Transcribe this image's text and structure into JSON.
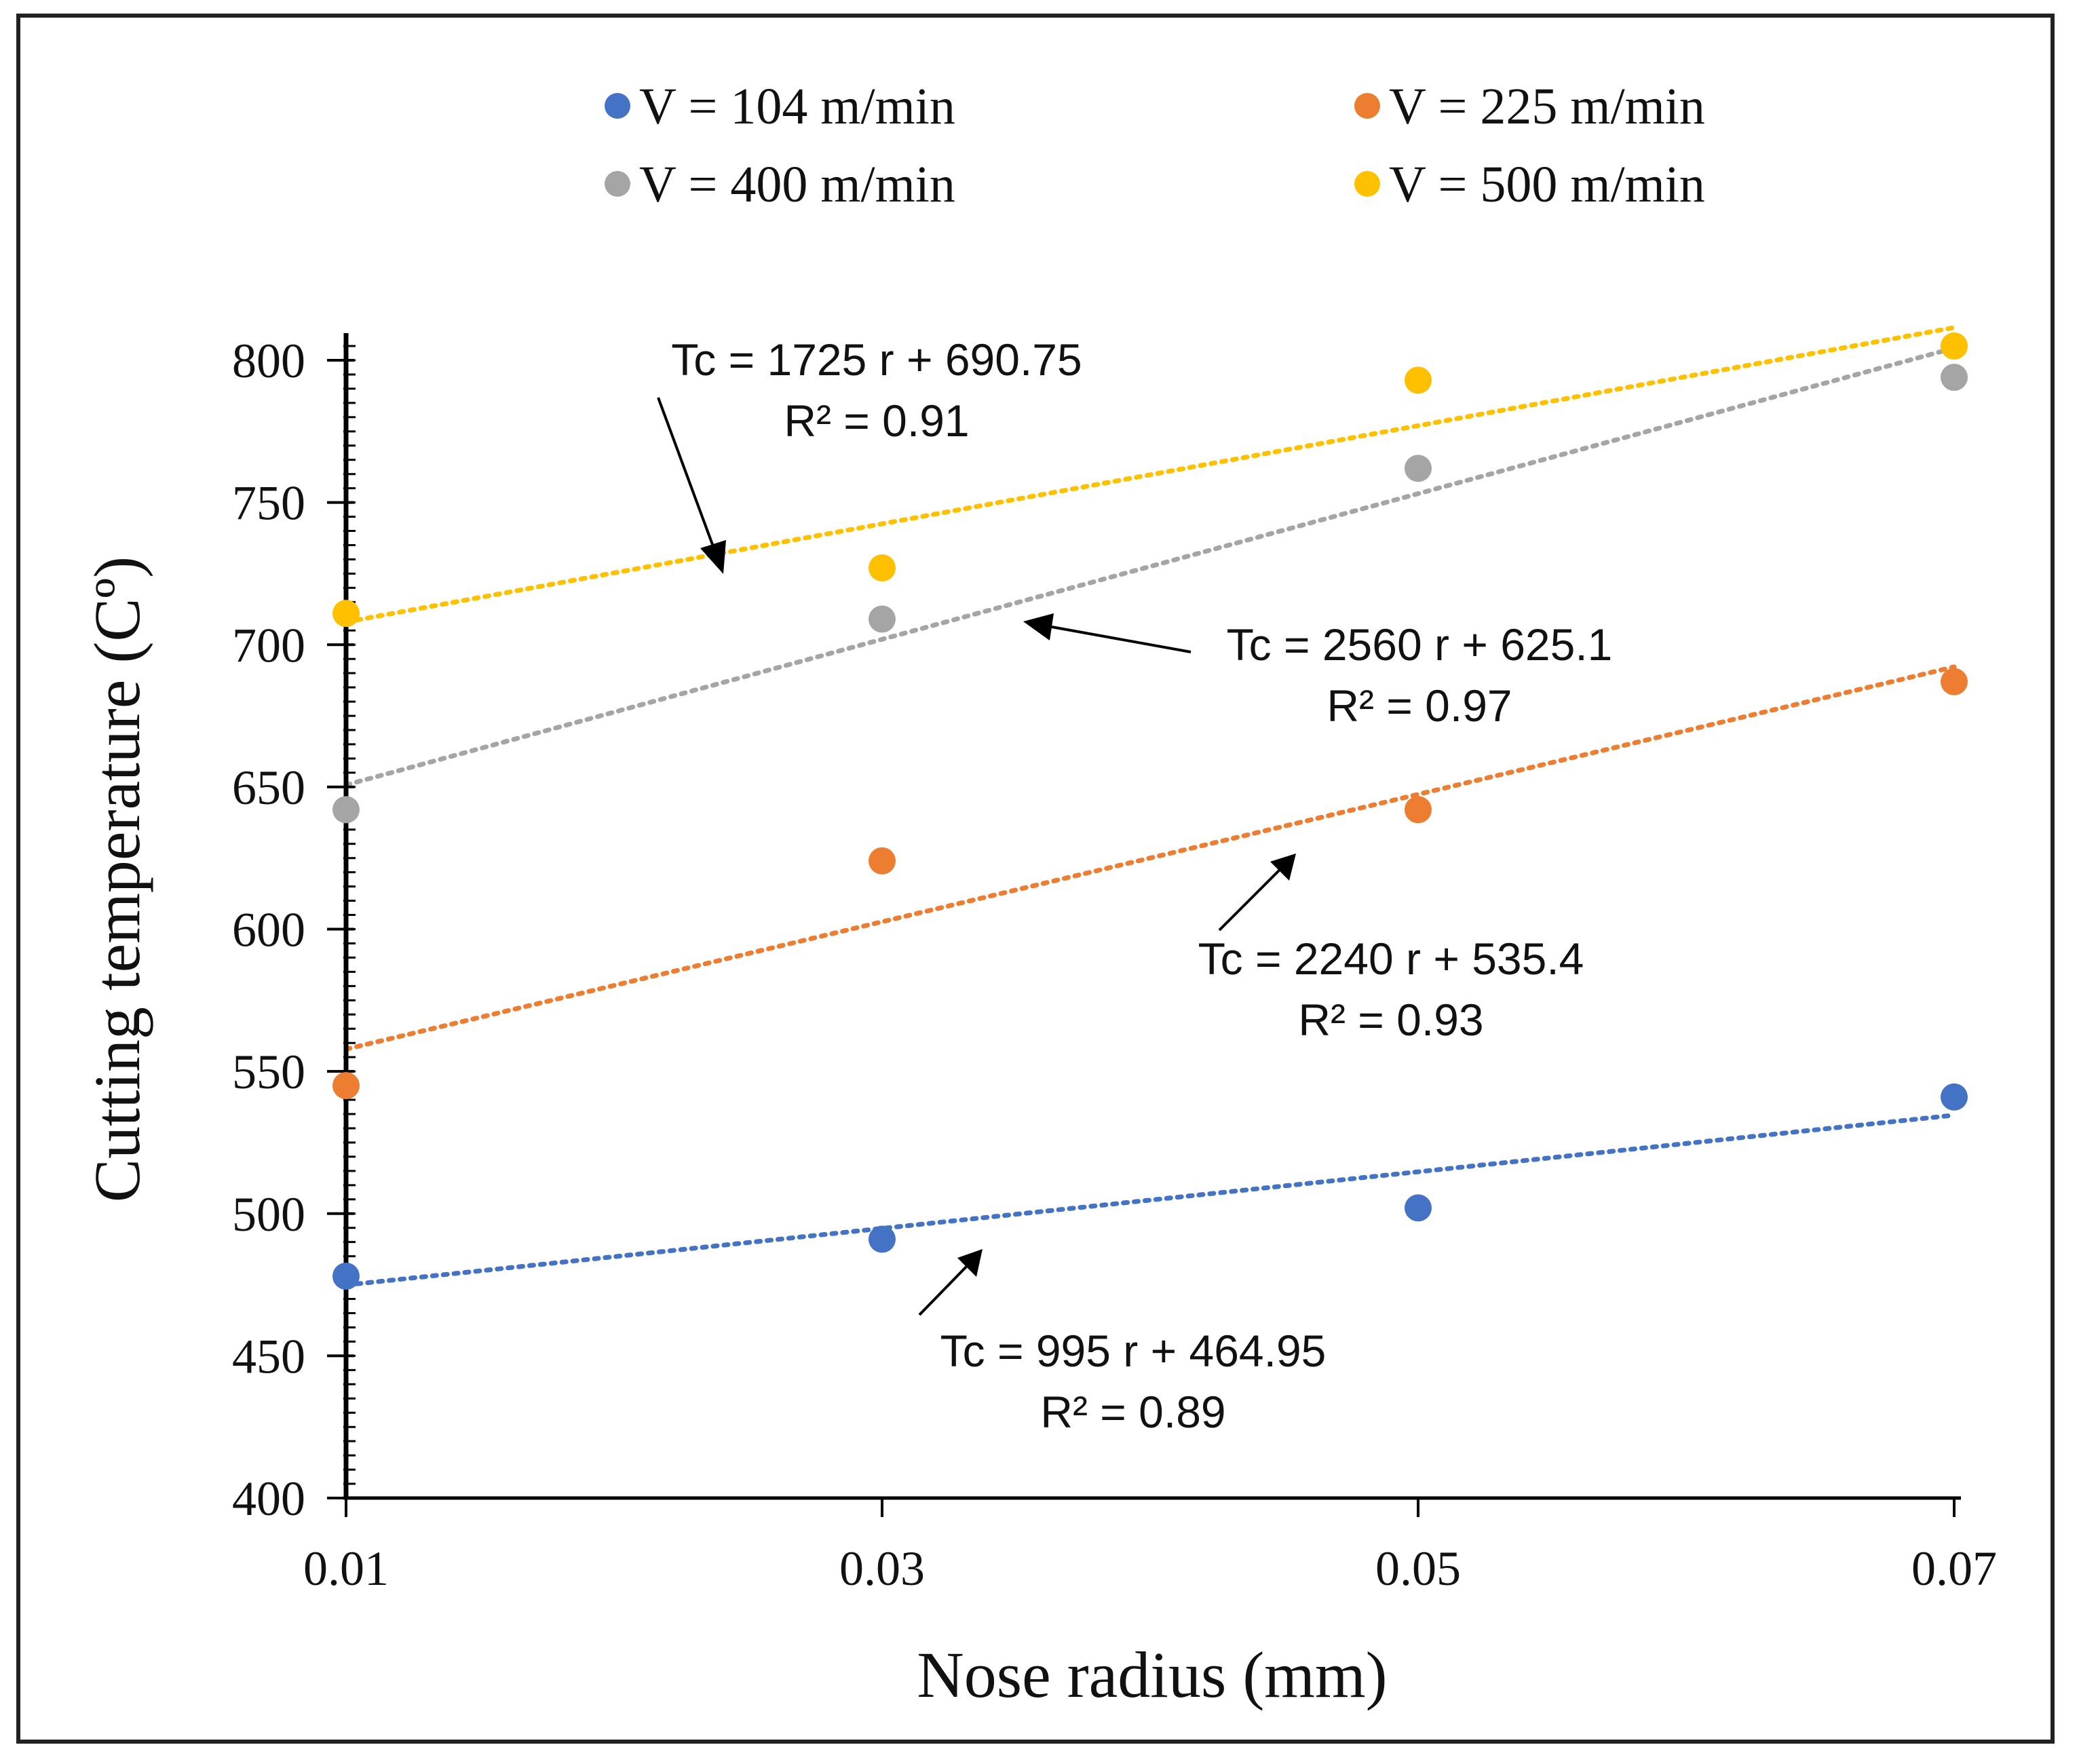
{
  "chart_data": {
    "type": "scatter",
    "xlabel": "Nose radius (mm)",
    "ylabel": "Cutting temperature (Cº)",
    "x": [
      0.01,
      0.03,
      0.05,
      0.07
    ],
    "x_tick_labels": [
      "0.01",
      "0.03",
      "0.05",
      "0.07"
    ],
    "xlim": [
      0.01,
      0.07
    ],
    "ylim": [
      400,
      800
    ],
    "y_ticks": [
      400,
      450,
      500,
      550,
      600,
      650,
      700,
      750,
      800
    ],
    "y_tick_labels": [
      "400",
      "450",
      "500",
      "550",
      "600",
      "650",
      "700",
      "750",
      "800"
    ],
    "grid": false,
    "legend_position": "top",
    "series": [
      {
        "name": "V = 104 m/min",
        "color": "#4472C4",
        "values": [
          478,
          491,
          502,
          541
        ],
        "trendline": {
          "slope": 995,
          "intercept": 464.95
        },
        "equation": "Tc = 995 r + 464.95",
        "r2": "R² = 0.89"
      },
      {
        "name": "V = 225 m/min",
        "color": "#ED7D31",
        "values": [
          545,
          624,
          642,
          687
        ],
        "trendline": {
          "slope": 2240,
          "intercept": 535.4
        },
        "equation": "Tc = 2240 r + 535.4",
        "r2": "R² = 0.93"
      },
      {
        "name": "V = 400 m/min",
        "color": "#A5A5A5",
        "values": [
          642,
          709,
          762,
          794
        ],
        "trendline": {
          "slope": 2560,
          "intercept": 625.1
        },
        "equation": "Tc = 2560 r + 625.1",
        "r2": "R² = 0.97"
      },
      {
        "name": "V = 500 m/min",
        "color": "#FFC000",
        "values": [
          711,
          727,
          793,
          805
        ],
        "trendline": {
          "slope": 1725,
          "intercept": 690.75
        },
        "equation": "Tc = 1725 r + 690.75",
        "r2": "R² = 0.91"
      }
    ]
  }
}
